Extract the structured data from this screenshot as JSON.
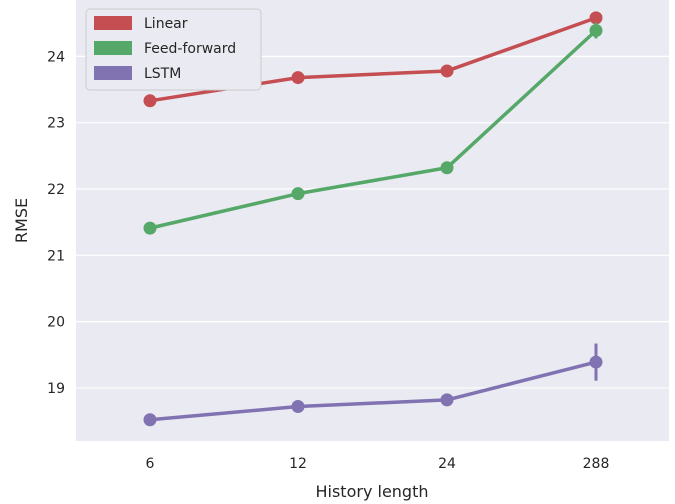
{
  "chart_data": {
    "type": "line",
    "title": "",
    "xlabel": "History length",
    "ylabel": "RMSE",
    "categories": [
      "6",
      "12",
      "24",
      "288"
    ],
    "ylim": [
      18.2,
      24.85
    ],
    "yticks": [
      19,
      20,
      21,
      22,
      23,
      24
    ],
    "grid": true,
    "legend_position": "top-left",
    "series": [
      {
        "name": "Linear",
        "color": "#c44e52",
        "values": [
          23.33,
          23.68,
          23.78,
          24.58
        ],
        "error": [
          0.05,
          0.05,
          0.05,
          0.07
        ]
      },
      {
        "name": "Feed-forward",
        "color": "#55a868",
        "values": [
          21.41,
          21.93,
          22.32,
          24.39
        ],
        "error": [
          0.05,
          0.05,
          0.07,
          0.12
        ]
      },
      {
        "name": "LSTM",
        "color": "#8172b2",
        "values": [
          18.52,
          18.72,
          18.82,
          19.39
        ],
        "error": [
          0.03,
          0.03,
          0.03,
          0.28
        ]
      }
    ]
  }
}
